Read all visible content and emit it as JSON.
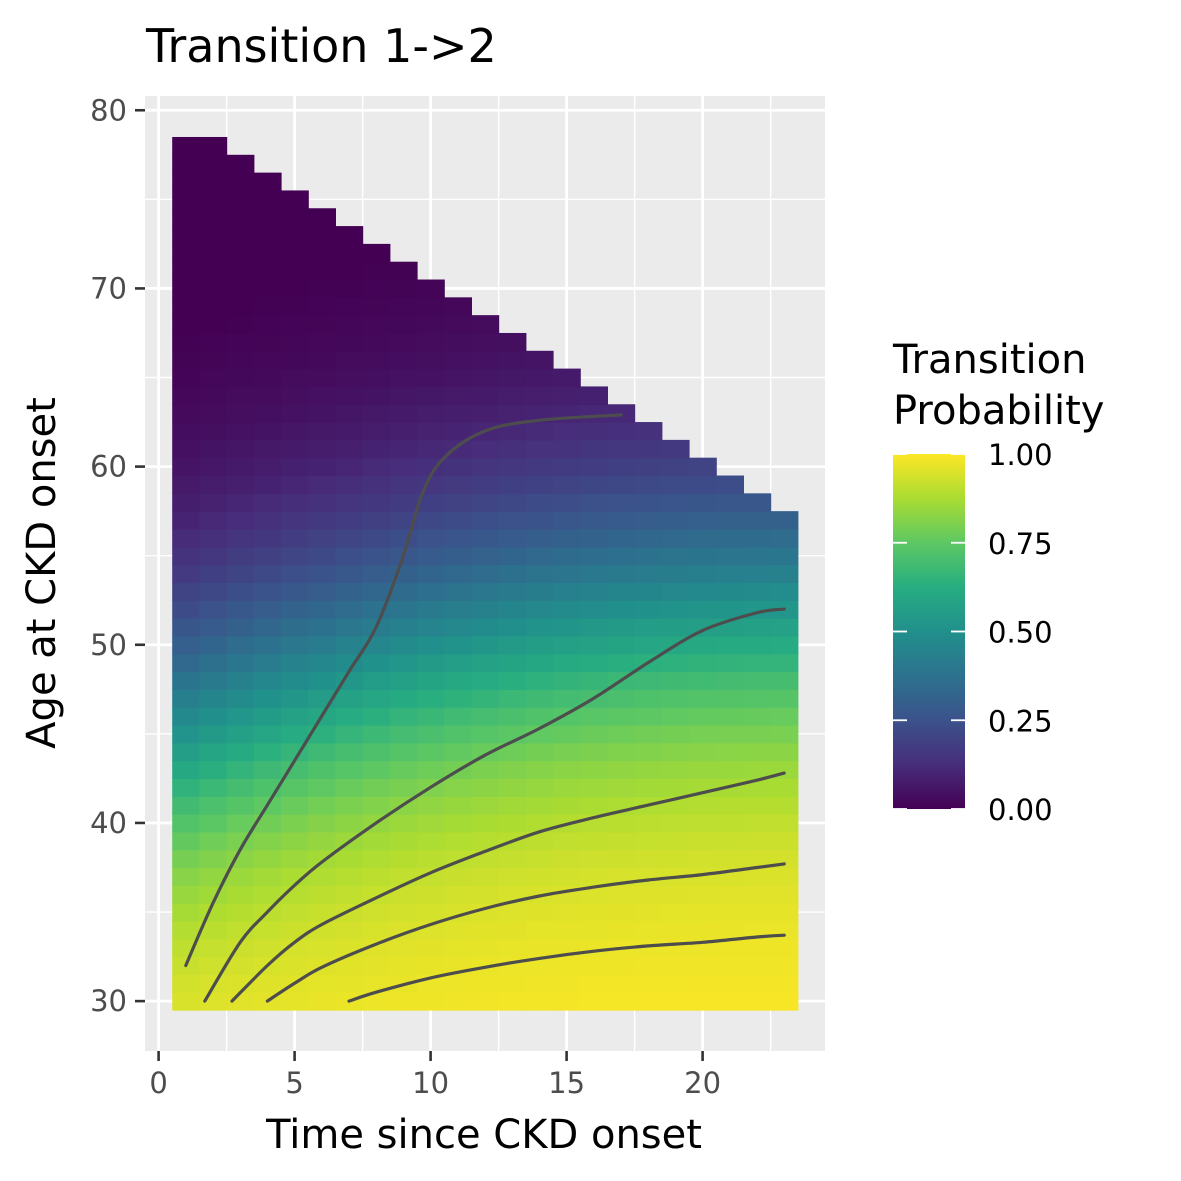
{
  "chart_data": {
    "type": "heatmap",
    "title": "Transition 1->2",
    "xlabel": "Time since CKD onset",
    "ylabel": "Age at CKD onset",
    "xlim": [
      -0.5,
      24.5
    ],
    "ylim": [
      27.2,
      80.8
    ],
    "xticks": [
      0,
      5,
      10,
      15,
      20
    ],
    "yticks": [
      30,
      40,
      50,
      60,
      70,
      80
    ],
    "grid": true,
    "tile_grid": {
      "x_centers": [
        1,
        2,
        3,
        4,
        5,
        6,
        7,
        8,
        9,
        10,
        11,
        12,
        13,
        14,
        15,
        16,
        17,
        18,
        19,
        20,
        21,
        22,
        23
      ],
      "y_range": [
        30,
        78
      ],
      "y_step": 1,
      "max_age_plus_time": 79
    },
    "legend": {
      "title_line1": "Transition",
      "title_line2": "Probability",
      "labels": [
        "1.00",
        "0.75",
        "0.50",
        "0.25",
        "0.00"
      ],
      "values": [
        1.0,
        0.75,
        0.5,
        0.25,
        0.0
      ],
      "position": "right"
    },
    "colormap": "viridis",
    "contour_color": "#4d4d4d",
    "contours": [
      {
        "points": [
          [
            1,
            32
          ],
          [
            2,
            35.5
          ],
          [
            3,
            38.5
          ],
          [
            4,
            41
          ],
          [
            5,
            43.5
          ],
          [
            6,
            46
          ],
          [
            7,
            48.5
          ],
          [
            8,
            51
          ],
          [
            9,
            55
          ],
          [
            9.7,
            58.5
          ],
          [
            10.5,
            60.5
          ],
          [
            12,
            62
          ],
          [
            14,
            62.6
          ],
          [
            17,
            62.9
          ]
        ]
      },
      {
        "points": [
          [
            1.7,
            30
          ],
          [
            3,
            33.3
          ],
          [
            4,
            35
          ],
          [
            5,
            36.5
          ],
          [
            6,
            37.8
          ],
          [
            8,
            40
          ],
          [
            10,
            42
          ],
          [
            12,
            43.8
          ],
          [
            14,
            45.3
          ],
          [
            16,
            47
          ],
          [
            18,
            49
          ],
          [
            20,
            50.8
          ],
          [
            22,
            51.8
          ],
          [
            23,
            52
          ]
        ]
      },
      {
        "points": [
          [
            2.7,
            30
          ],
          [
            4,
            32
          ],
          [
            5,
            33.3
          ],
          [
            6,
            34.3
          ],
          [
            8,
            35.8
          ],
          [
            10,
            37.2
          ],
          [
            12,
            38.4
          ],
          [
            14,
            39.5
          ],
          [
            16,
            40.3
          ],
          [
            18,
            41
          ],
          [
            20,
            41.7
          ],
          [
            22,
            42.4
          ],
          [
            23,
            42.8
          ]
        ]
      },
      {
        "points": [
          [
            4,
            30
          ],
          [
            5,
            31
          ],
          [
            6,
            31.9
          ],
          [
            8,
            33.2
          ],
          [
            10,
            34.3
          ],
          [
            12,
            35.2
          ],
          [
            14,
            35.9
          ],
          [
            16,
            36.4
          ],
          [
            18,
            36.8
          ],
          [
            20,
            37.1
          ],
          [
            22,
            37.5
          ],
          [
            23,
            37.7
          ]
        ]
      },
      {
        "points": [
          [
            7,
            30
          ],
          [
            8,
            30.5
          ],
          [
            10,
            31.3
          ],
          [
            12,
            31.9
          ],
          [
            14,
            32.4
          ],
          [
            16,
            32.8
          ],
          [
            18,
            33.1
          ],
          [
            20,
            33.3
          ],
          [
            22,
            33.6
          ],
          [
            23,
            33.7
          ]
        ]
      }
    ]
  }
}
